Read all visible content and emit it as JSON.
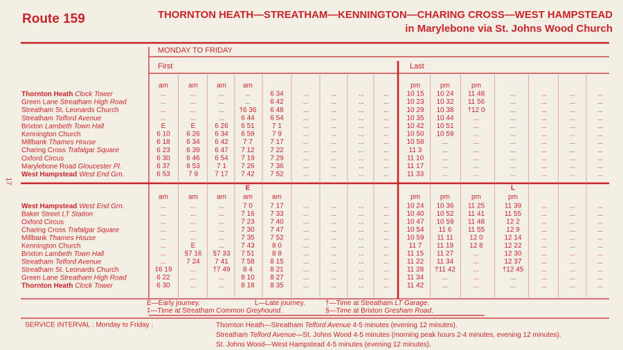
{
  "header": {
    "route": "Route 159",
    "line1": "THORNTON HEATH—STREATHAM—KENNINGTON—CHARING CROSS—WEST HAMPSTEAD",
    "line2": "in Marylebone via St. Johns Wood Church"
  },
  "page_number": "17",
  "days": "MONDAY TO FRIDAY",
  "first": "First",
  "last": "Last",
  "sections": [
    {
      "periods": [
        "am",
        "am",
        "am",
        "am",
        null,
        null,
        null,
        null,
        null,
        "pm",
        "pm",
        "pm",
        null,
        null,
        null,
        null
      ],
      "rows": [
        {
          "place": "Thornton Heath",
          "detail": "Clock Tower",
          "bold": true,
          "times": [
            "...",
            "...",
            "...",
            "...",
            "6 34",
            "...",
            "...",
            "...",
            "...",
            "10 15",
            "10 24",
            "11 48",
            "...",
            "...",
            "...",
            "..."
          ]
        },
        {
          "place": "Green Lane",
          "detail": "Streatham High Road",
          "bold": false,
          "times": [
            "...",
            "...",
            "...",
            "...",
            "6 42",
            "...",
            "...",
            "...",
            "...",
            "10 23",
            "10 32",
            "11 56",
            "...",
            "...",
            "...",
            "..."
          ]
        },
        {
          "place": "Streatham St. Leonards Church",
          "bold": false,
          "times": [
            "...",
            "...",
            "...",
            "†6 36",
            "6 48",
            "...",
            "...",
            "...",
            "...",
            "10 29",
            "10 38",
            "†12 0",
            "...",
            "...",
            "...",
            "..."
          ]
        },
        {
          "place": "Streatham",
          "detail": "Telford Avenue",
          "bold": false,
          "times": [
            "...",
            "...",
            "...",
            "6 44",
            "6 54",
            "...",
            "...",
            "...",
            "...",
            "10 35",
            "10 44",
            "...",
            "...",
            "...",
            "...",
            "..."
          ]
        },
        {
          "place": "Brixton",
          "detail": "Lambeth Town Hall",
          "bold": false,
          "times": [
            "E",
            "E",
            "6 26",
            "6 51",
            "7 1",
            "...",
            "...",
            "...",
            "...",
            "10 42",
            "10 51",
            "...",
            "...",
            "...",
            "...",
            "..."
          ]
        },
        {
          "place": "Kennington Church",
          "bold": false,
          "times": [
            "6 10",
            "6 26",
            "6 34",
            "6 59",
            "7 9",
            "...",
            "...",
            "...",
            "...",
            "10 50",
            "10 59",
            "...",
            "...",
            "...",
            "...",
            "..."
          ]
        },
        {
          "place": "Millbank",
          "detail": "Thames House",
          "bold": false,
          "times": [
            "6 18",
            "6 34",
            "6 42",
            "7 7",
            "7 17",
            "...",
            "...",
            "...",
            "...",
            "10 58",
            "...",
            "...",
            "...",
            "...",
            "...",
            "..."
          ]
        },
        {
          "place": "Charing Cross",
          "detail": "Trafalgar Square",
          "bold": false,
          "times": [
            "6 23",
            "6 39",
            "6 47",
            "7 12",
            "7 22",
            "...",
            "...",
            "...",
            "...",
            "11 3",
            "...",
            "...",
            "...",
            "...",
            "...",
            "..."
          ]
        },
        {
          "place": "Oxford Circus",
          "bold": false,
          "times": [
            "6 30",
            "6 46",
            "6 54",
            "7 19",
            "7 29",
            "...",
            "...",
            "...",
            "...",
            "11 10",
            "...",
            "...",
            "...",
            "...",
            "...",
            "..."
          ]
        },
        {
          "place": "Marylebone Road",
          "detail": "Gloucester Pl.",
          "bold": false,
          "times": [
            "6 37",
            "6 53",
            "7 1",
            "7 26",
            "7 36",
            "...",
            "...",
            "...",
            "...",
            "11 17",
            "...",
            "...",
            "...",
            "...",
            "...",
            "..."
          ]
        },
        {
          "place": "West Hampstead",
          "detail": "West End Grn.",
          "bold": true,
          "times": [
            "6 53",
            "7 9",
            "7 17",
            "7 42",
            "7 52",
            "...",
            "...",
            "...",
            "...",
            "11 33",
            "...",
            "...",
            "...",
            "...",
            "...",
            "..."
          ]
        }
      ]
    },
    {
      "marks": [
        null,
        null,
        null,
        "E",
        null,
        null,
        null,
        null,
        null,
        null,
        null,
        null,
        "L",
        null,
        null,
        null
      ],
      "periods": [
        "am",
        "am",
        "am",
        "am",
        "am",
        null,
        null,
        null,
        null,
        "pm",
        "pm",
        "pm",
        "pm",
        null,
        null,
        null
      ],
      "rows": [
        {
          "place": "West Hampstead",
          "detail": "West End Grn.",
          "bold": true,
          "times": [
            "...",
            "...",
            "...",
            "7 0",
            "7 17",
            "...",
            "...",
            "...",
            "...",
            "10 24",
            "10 36",
            "11 25",
            "11 39",
            "...",
            "...",
            "..."
          ]
        },
        {
          "place": "Baker Street",
          "detail": "LT Station",
          "bold": false,
          "times": [
            "...",
            "...",
            "...",
            "7 16",
            "7 33",
            "...",
            "...",
            "...",
            "...",
            "10 40",
            "10 52",
            "11 41",
            "11 55",
            "...",
            "...",
            "..."
          ]
        },
        {
          "place": "Oxford Circus",
          "bold": false,
          "times": [
            "...",
            "...",
            "...",
            "7 23",
            "7 40",
            "...",
            "...",
            "...",
            "...",
            "10 47",
            "10 59",
            "11 48",
            "12 2",
            "...",
            "...",
            "..."
          ]
        },
        {
          "place": "Charing Cross",
          "detail": "Trafalgar Square",
          "bold": false,
          "times": [
            "...",
            "...",
            "...",
            "7 30",
            "7 47",
            "...",
            "...",
            "...",
            "...",
            "10 54",
            "11 6",
            "11 55",
            "12 9",
            "...",
            "...",
            "..."
          ]
        },
        {
          "place": "Millbank",
          "detail": "Thames House",
          "bold": false,
          "times": [
            "...",
            "...",
            "...",
            "7 35",
            "7 52",
            "...",
            "...",
            "...",
            "...",
            "10 59",
            "11 11",
            "12 0",
            "12 14",
            "...",
            "...",
            "..."
          ]
        },
        {
          "place": "Kennington Church",
          "bold": false,
          "times": [
            "...",
            "E",
            "...",
            "7 43",
            "8 0",
            "...",
            "...",
            "...",
            "...",
            "11 7",
            "11 19",
            "12 8",
            "12 22",
            "...",
            "...",
            "..."
          ]
        },
        {
          "place": "Brixton",
          "detail": "Lambeth Town Hall",
          "bold": false,
          "times": [
            "...",
            "§7 16",
            "§7 33",
            "7 51",
            "8 8",
            "...",
            "...",
            "...",
            "...",
            "11 15",
            "11 27",
            "...",
            "12 30",
            "...",
            "...",
            "..."
          ]
        },
        {
          "place": "Streatham",
          "detail": "Telford Avenue",
          "bold": false,
          "times": [
            "...",
            "7 24",
            "7 41",
            "7 58",
            "8 15",
            "...",
            "...",
            "...",
            "...",
            "11 22",
            "11 34",
            "...",
            "12 37",
            "...",
            "...",
            "..."
          ]
        },
        {
          "place": "Streatham St. Leonards Church",
          "bold": false,
          "times": [
            "‡6 19",
            "...",
            "†7 49",
            "8 4",
            "8 21",
            "...",
            "...",
            "...",
            "...",
            "11 28",
            "†11 42",
            "...",
            "†12 45",
            "...",
            "...",
            "..."
          ]
        },
        {
          "place": "Green Lane",
          "detail": "Streatham High Road",
          "bold": false,
          "times": [
            "6 22",
            "...",
            "...",
            "8 10",
            "8 27",
            "...",
            "...",
            "...",
            "...",
            "11 34",
            "...",
            "...",
            "...",
            "...",
            "...",
            "..."
          ]
        },
        {
          "place": "Thornton Heath",
          "detail": "Clock Tower",
          "bold": true,
          "times": [
            "6 30",
            "...",
            "...",
            "8 18",
            "8 35",
            "...",
            "...",
            "...",
            "...",
            "11 42",
            "...",
            "...",
            "...",
            "...",
            "...",
            "..."
          ]
        }
      ]
    }
  ],
  "footnotes": [
    [
      {
        "t": "E—Early journey."
      }
    ],
    [
      {
        "t": "L—Late journey."
      }
    ],
    [
      {
        "t": "†—Time at Streatham "
      },
      {
        "t": "LT Garage",
        "i": true
      },
      {
        "t": "."
      }
    ],
    [
      {
        "t": "‡—Time at Streatham Common "
      },
      {
        "t": "Greyhound",
        "i": true
      },
      {
        "t": "."
      }
    ],
    [
      {
        "t": "§—Time at Brixton "
      },
      {
        "t": "Gresham Road",
        "i": true
      },
      {
        "t": "."
      }
    ]
  ],
  "service_interval": {
    "label": "SERVICE INTERVAL : Monday to Friday :",
    "lines": [
      [
        {
          "t": "Thornton Heath—Streatham "
        },
        {
          "t": "Telford Avenue",
          "i": true
        },
        {
          "t": " 4-5 minutes (evening 12 minutes)."
        }
      ],
      [
        {
          "t": "Streatham "
        },
        {
          "t": "Telford Avenue",
          "i": true
        },
        {
          "t": "—St. Johns Wood 4-5 minutes (morning peak hours 2-4 minutes, evening 12 minutes)."
        }
      ],
      [
        {
          "t": "St. Johns Wood—West Hampstead 4-5 minutes (evening 12 minutes)."
        }
      ]
    ]
  }
}
